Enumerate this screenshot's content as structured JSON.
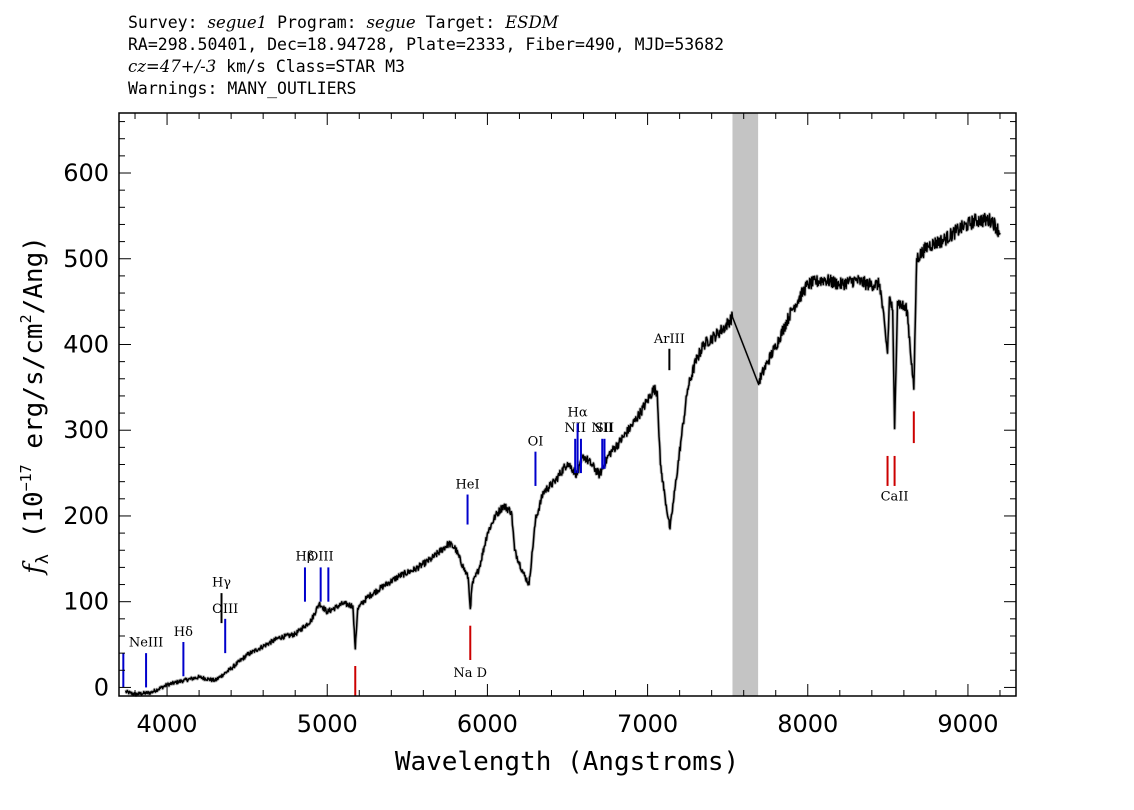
{
  "header": {
    "l1_survey_key": "Survey: ",
    "l1_survey_val": "segue1",
    "l1_program_key": " Program: ",
    "l1_program_val": "segue",
    "l1_target_key": " Target: ",
    "l1_target_val": "ESDM",
    "line2": "RA=298.50401, Dec=18.94728, Plate=2333, Fiber=490, MJD=53682",
    "l3_cz": "cz=47+/-3",
    "l3_rest": " km/s Class=STAR M3",
    "line4": "Warnings: MANY_OUTLIERS"
  },
  "chart_data": {
    "type": "line",
    "xlabel": "Wavelength (Angstroms)",
    "ylabel_main": "f",
    "ylabel_sub": "λ",
    "ylabel_units_a": " (10",
    "ylabel_exp1": "−17",
    "ylabel_units_b": " erg/s/cm",
    "ylabel_exp2": "2",
    "ylabel_units_c": "/Ang)",
    "xlim": [
      3700,
      9300
    ],
    "ylim": [
      -10,
      670
    ],
    "x_ticks": [
      4000,
      5000,
      6000,
      7000,
      8000,
      9000
    ],
    "y_ticks": [
      0,
      100,
      200,
      300,
      400,
      500,
      600
    ],
    "masked_region": [
      7530,
      7690
    ],
    "spectrum_anchor_points": [
      [
        3740,
        -5
      ],
      [
        3800,
        -8
      ],
      [
        3900,
        -6
      ],
      [
        4000,
        3
      ],
      [
        4100,
        8
      ],
      [
        4200,
        12
      ],
      [
        4300,
        8
      ],
      [
        4400,
        22
      ],
      [
        4500,
        38
      ],
      [
        4600,
        48
      ],
      [
        4700,
        58
      ],
      [
        4800,
        62
      ],
      [
        4900,
        78
      ],
      [
        4950,
        98
      ],
      [
        5000,
        88
      ],
      [
        5100,
        98
      ],
      [
        5160,
        95
      ],
      [
        5175,
        45
      ],
      [
        5190,
        92
      ],
      [
        5250,
        105
      ],
      [
        5350,
        118
      ],
      [
        5450,
        130
      ],
      [
        5550,
        138
      ],
      [
        5650,
        150
      ],
      [
        5760,
        168
      ],
      [
        5800,
        162
      ],
      [
        5850,
        140
      ],
      [
        5880,
        128
      ],
      [
        5893,
        92
      ],
      [
        5905,
        120
      ],
      [
        5950,
        140
      ],
      [
        6000,
        180
      ],
      [
        6050,
        200
      ],
      [
        6100,
        212
      ],
      [
        6150,
        205
      ],
      [
        6170,
        160
      ],
      [
        6220,
        135
      ],
      [
        6260,
        120
      ],
      [
        6300,
        195
      ],
      [
        6350,
        228
      ],
      [
        6420,
        240
      ],
      [
        6500,
        262
      ],
      [
        6560,
        248
      ],
      [
        6600,
        270
      ],
      [
        6650,
        260
      ],
      [
        6700,
        248
      ],
      [
        6760,
        272
      ],
      [
        6820,
        285
      ],
      [
        6900,
        305
      ],
      [
        6960,
        322
      ],
      [
        7000,
        335
      ],
      [
        7040,
        348
      ],
      [
        7060,
        345
      ],
      [
        7080,
        260
      ],
      [
        7110,
        220
      ],
      [
        7140,
        185
      ],
      [
        7170,
        230
      ],
      [
        7210,
        290
      ],
      [
        7250,
        348
      ],
      [
        7300,
        380
      ],
      [
        7350,
        400
      ],
      [
        7420,
        410
      ],
      [
        7480,
        420
      ],
      [
        7530,
        432
      ],
      [
        7690,
        355
      ],
      [
        7750,
        380
      ],
      [
        7800,
        398
      ],
      [
        7900,
        440
      ],
      [
        8000,
        470
      ],
      [
        8100,
        476
      ],
      [
        8200,
        470
      ],
      [
        8300,
        475
      ],
      [
        8380,
        470
      ],
      [
        8450,
        470
      ],
      [
        8498,
        390
      ],
      [
        8510,
        455
      ],
      [
        8530,
        440
      ],
      [
        8542,
        302
      ],
      [
        8560,
        450
      ],
      [
        8620,
        440
      ],
      [
        8662,
        348
      ],
      [
        8680,
        500
      ],
      [
        8750,
        515
      ],
      [
        8850,
        522
      ],
      [
        8950,
        535
      ],
      [
        9050,
        545
      ],
      [
        9150,
        545
      ],
      [
        9200,
        530
      ]
    ],
    "emission_lines": [
      {
        "label": "",
        "wavelength": 3727,
        "y_top": 40,
        "y_bottom": 0,
        "label_y": 48,
        "color": "#0000cc"
      },
      {
        "label": "NeIII",
        "wavelength": 3869,
        "y_top": 40,
        "y_bottom": 0,
        "label_y": 48,
        "color": "#0000cc"
      },
      {
        "label": "Hδ",
        "wavelength": 4102,
        "y_top": 53,
        "y_bottom": 13,
        "label_y": 60,
        "color": "#0000cc"
      },
      {
        "label": "Hγ",
        "wavelength": 4340,
        "y_top": 110,
        "y_bottom": 75,
        "label_y": 118,
        "color": "#000000"
      },
      {
        "label": "OIII",
        "wavelength": 4363,
        "y_top": 80,
        "y_bottom": 40,
        "label_y": 87,
        "color": "#0000cc"
      },
      {
        "label": "Hβ",
        "wavelength": 4861,
        "y_top": 140,
        "y_bottom": 100,
        "label_y": 148,
        "color": "#0000cc"
      },
      {
        "label": "OIII",
        "wavelength": 4959,
        "y_top": 140,
        "y_bottom": 100,
        "label_y": 148,
        "color": "#0000cc"
      },
      {
        "label": "",
        "wavelength": 5007,
        "y_top": 140,
        "y_bottom": 100,
        "label_y": 148,
        "color": "#0000cc"
      },
      {
        "label": "HeI",
        "wavelength": 5876,
        "y_top": 225,
        "y_bottom": 190,
        "label_y": 232,
        "color": "#0000cc"
      },
      {
        "label": "OI",
        "wavelength": 6300,
        "y_top": 275,
        "y_bottom": 235,
        "label_y": 282,
        "color": "#0000cc"
      },
      {
        "label": "NII",
        "wavelength": 6548,
        "y_top": 290,
        "y_bottom": 250,
        "label_y": 298,
        "color": "#0000cc"
      },
      {
        "label": "Hα",
        "wavelength": 6563,
        "y_top": 308,
        "y_bottom": 250,
        "label_y": 316,
        "color": "#0000cc"
      },
      {
        "label": "",
        "wavelength": 6584,
        "y_top": 290,
        "y_bottom": 250,
        "label_y": 298,
        "color": "#0000cc"
      },
      {
        "label": "NII",
        "wavelength": 6717,
        "y_top": 290,
        "y_bottom": 255,
        "label_y": 298,
        "color": "#0000cc"
      },
      {
        "label": "SII",
        "wavelength": 6731,
        "y_top": 290,
        "y_bottom": 255,
        "label_y": 298,
        "color": "#0000cc"
      },
      {
        "label": "ArIII",
        "wavelength": 7136,
        "y_top": 395,
        "y_bottom": 370,
        "label_y": 402,
        "color": "#000000"
      }
    ],
    "absorption_lines": [
      {
        "label": "",
        "wavelength": 5175,
        "y_top": 25,
        "y_bottom": -10,
        "label_y": -12,
        "color": "#cc0000"
      },
      {
        "label": "Na D",
        "wavelength": 5893,
        "y_top": 72,
        "y_bottom": 32,
        "label_y": 12,
        "color": "#cc0000"
      },
      {
        "label": "",
        "wavelength": 8498,
        "y_top": 270,
        "y_bottom": 235,
        "label_y": 218,
        "color": "#cc0000"
      },
      {
        "label": "CaII",
        "wavelength": 8542,
        "y_top": 270,
        "y_bottom": 235,
        "label_y": 218,
        "color": "#cc0000"
      },
      {
        "label": "",
        "wavelength": 8662,
        "y_top": 322,
        "y_bottom": 285,
        "label_y": 218,
        "color": "#cc0000"
      }
    ]
  }
}
